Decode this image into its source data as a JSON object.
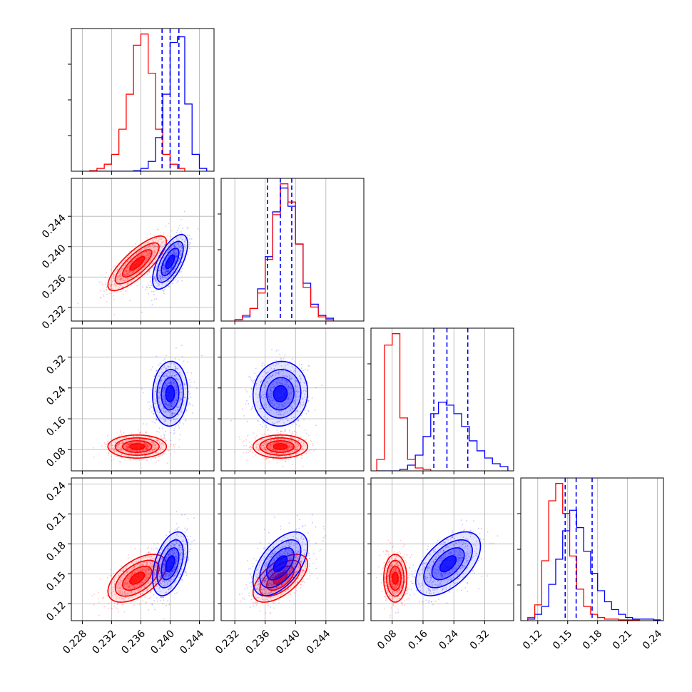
{
  "chart_data": {
    "type": "corner",
    "title": "",
    "grid": true,
    "series_colors": {
      "blue": "#0000ff",
      "red": "#ff0000"
    },
    "parameters": [
      {
        "range": [
          0.2265,
          0.246
        ],
        "ticks": [
          "0.228",
          "0.232",
          "0.236",
          "0.240",
          "0.244"
        ]
      },
      {
        "range": [
          0.2302,
          0.249
        ],
        "ticks": [
          "0.232",
          "0.236",
          "0.240",
          "0.244"
        ]
      },
      {
        "range": [
          0.025,
          0.395
        ],
        "ticks": [
          "0.08",
          "0.16",
          "0.24",
          "0.32"
        ]
      },
      {
        "range": [
          0.103,
          0.246
        ],
        "ticks": [
          "0.12",
          "0.15",
          "0.18",
          "0.21",
          "0.24"
        ]
      }
    ],
    "diagonal": [
      {
        "param": 0,
        "series": [
          {
            "color": "blue",
            "bin_edges": [
              0.23,
              0.231,
              0.232,
              0.233,
              0.234,
              0.235,
              0.236,
              0.237,
              0.238,
              0.239,
              0.24,
              0.241,
              0.242,
              0.243,
              0.244,
              0.245
            ],
            "values": [
              0,
              0,
              0,
              0,
              0,
              0.004,
              0.02,
              0.07,
              0.24,
              0.55,
              0.92,
              0.96,
              0.48,
              0.12,
              0.02
            ]
          },
          {
            "color": "red",
            "bin_edges": [
              0.229,
              0.23,
              0.231,
              0.232,
              0.233,
              0.234,
              0.235,
              0.236,
              0.237,
              0.238,
              0.239,
              0.24,
              0.241,
              0.242
            ],
            "values": [
              0.004,
              0.02,
              0.05,
              0.12,
              0.3,
              0.55,
              0.9,
              0.98,
              0.7,
              0.3,
              0.12,
              0.05,
              0.02
            ]
          }
        ],
        "quantiles": [
          0.2389,
          0.24,
          0.2412
        ]
      },
      {
        "param": 1,
        "series": [
          {
            "color": "blue",
            "bin_edges": [
              0.232,
              0.233,
              0.234,
              0.235,
              0.236,
              0.237,
              0.238,
              0.239,
              0.24,
              0.241,
              0.242,
              0.243,
              0.244,
              0.245
            ],
            "values": [
              0.01,
              0.03,
              0.09,
              0.23,
              0.46,
              0.78,
              0.95,
              0.82,
              0.55,
              0.27,
              0.12,
              0.04,
              0.02
            ]
          },
          {
            "color": "red",
            "bin_edges": [
              0.232,
              0.233,
              0.234,
              0.235,
              0.236,
              0.237,
              0.238,
              0.239,
              0.24,
              0.241,
              0.242,
              0.243,
              0.244,
              0.245
            ],
            "values": [
              0.01,
              0.04,
              0.09,
              0.2,
              0.44,
              0.76,
              0.98,
              0.85,
              0.55,
              0.24,
              0.1,
              0.03,
              0.01
            ]
          }
        ],
        "quantiles": [
          0.2363,
          0.238,
          0.2395
        ]
      },
      {
        "param": 2,
        "series": [
          {
            "color": "blue",
            "bin_edges": [
              0.04,
              0.06,
              0.08,
              0.1,
              0.12,
              0.14,
              0.16,
              0.18,
              0.2,
              0.22,
              0.24,
              0.26,
              0.28,
              0.3,
              0.32,
              0.34,
              0.36,
              0.38
            ],
            "values": [
              0,
              0,
              0,
              0.01,
              0.04,
              0.11,
              0.24,
              0.4,
              0.48,
              0.46,
              0.4,
              0.31,
              0.21,
              0.14,
              0.09,
              0.05,
              0.03
            ]
          },
          {
            "color": "red",
            "bin_edges": [
              0.04,
              0.06,
              0.08,
              0.1,
              0.12,
              0.14,
              0.16,
              0.18
            ],
            "values": [
              0.08,
              0.88,
              0.96,
              0.37,
              0.08,
              0.02,
              0.01
            ]
          }
        ],
        "quantiles": [
          0.188,
          0.222,
          0.276
        ]
      },
      {
        "param": 3,
        "series": [
          {
            "color": "blue",
            "bin_edges": [
              0.11,
              0.117,
              0.124,
              0.131,
              0.138,
              0.145,
              0.152,
              0.159,
              0.166,
              0.173,
              0.18,
              0.187,
              0.194,
              0.201,
              0.208,
              0.215,
              0.222,
              0.229,
              0.236,
              0.243
            ],
            "values": [
              0.01,
              0.04,
              0.09,
              0.23,
              0.39,
              0.57,
              0.7,
              0.59,
              0.44,
              0.3,
              0.19,
              0.12,
              0.07,
              0.04,
              0.02,
              0.01,
              0.01,
              0.01,
              0.005
            ]
          },
          {
            "color": "red",
            "bin_edges": [
              0.11,
              0.117,
              0.124,
              0.131,
              0.138,
              0.145,
              0.152,
              0.159,
              0.166,
              0.173,
              0.18,
              0.187,
              0.194,
              0.201,
              0.208,
              0.215,
              0.222
            ],
            "values": [
              0.02,
              0.1,
              0.38,
              0.76,
              0.87,
              0.68,
              0.41,
              0.2,
              0.09,
              0.04,
              0.02,
              0.01,
              0.01,
              0.005,
              0.005,
              0.005
            ]
          }
        ],
        "quantiles": [
          0.1475,
          0.1585,
          0.1745
        ]
      }
    ],
    "pairs": [
      {
        "row": 1,
        "col": 0,
        "series": [
          {
            "color": "red",
            "mean": [
              0.2355,
              0.2378
            ],
            "sd": [
              0.002,
              0.0018
            ],
            "rho": 0.8
          },
          {
            "color": "blue",
            "mean": [
              0.24,
              0.238
            ],
            "sd": [
              0.0012,
              0.0018
            ],
            "rho": 0.65
          }
        ]
      },
      {
        "row": 2,
        "col": 0,
        "series": [
          {
            "color": "red",
            "mean": [
              0.2355,
              0.088
            ],
            "sd": [
              0.002,
              0.015
            ],
            "rho": 0.0
          },
          {
            "color": "blue",
            "mean": [
              0.24,
              0.225
            ],
            "sd": [
              0.0012,
              0.042
            ],
            "rho": 0.05
          }
        ]
      },
      {
        "row": 2,
        "col": 1,
        "series": [
          {
            "color": "red",
            "mean": [
              0.238,
              0.088
            ],
            "sd": [
              0.0018,
              0.015
            ],
            "rho": 0.0
          },
          {
            "color": "blue",
            "mean": [
              0.238,
              0.225
            ],
            "sd": [
              0.0018,
              0.042
            ],
            "rho": 0.05
          }
        ]
      },
      {
        "row": 3,
        "col": 0,
        "series": [
          {
            "color": "red",
            "mean": [
              0.2355,
              0.1455
            ],
            "sd": [
              0.002,
              0.012
            ],
            "rho": 0.55
          },
          {
            "color": "blue",
            "mean": [
              0.24,
              0.16
            ],
            "sd": [
              0.0012,
              0.016
            ],
            "rho": 0.45
          }
        ]
      },
      {
        "row": 3,
        "col": 1,
        "series": [
          {
            "color": "red",
            "mean": [
              0.238,
              0.1455
            ],
            "sd": [
              0.0018,
              0.012
            ],
            "rho": 0.6
          },
          {
            "color": "blue",
            "mean": [
              0.238,
              0.16
            ],
            "sd": [
              0.0018,
              0.016
            ],
            "rho": 0.55
          }
        ]
      },
      {
        "row": 3,
        "col": 2,
        "series": [
          {
            "color": "red",
            "mean": [
              0.088,
              0.1455
            ],
            "sd": [
              0.015,
              0.012
            ],
            "rho": 0.0
          },
          {
            "color": "blue",
            "mean": [
              0.225,
              0.16
            ],
            "sd": [
              0.042,
              0.016
            ],
            "rho": 0.55
          }
        ]
      }
    ]
  }
}
